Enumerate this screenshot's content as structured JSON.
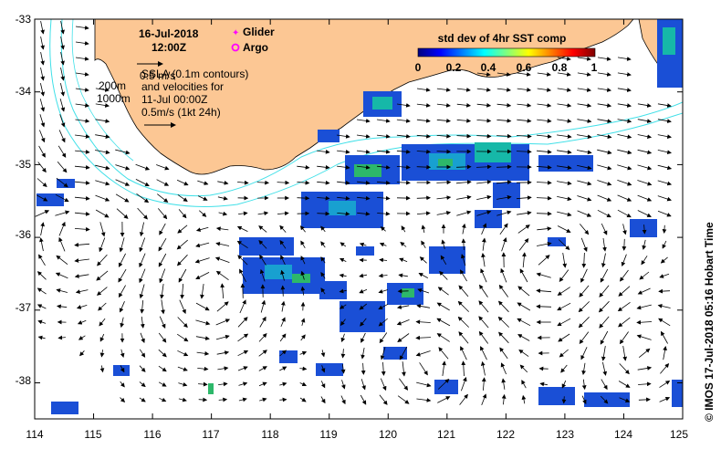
{
  "header": {
    "date": "16-Jul-2018",
    "time": "12:00Z",
    "legend_glider": "Glider",
    "legend_argo": "Argo",
    "sla_line1": "SSLA (0.1m contours)",
    "sla_line2": "and velocities for",
    "sla_line3": "11-Jul 00:00Z",
    "scale_drifter": "0.5m/s (1kt 24h)",
    "scale_top": "0.5 m/s",
    "depth_200": "200m",
    "depth_1000": "1000m"
  },
  "colorbar": {
    "title": "std dev of 4hr SST comp",
    "ticks": [
      "0",
      "0.2",
      "0.4",
      "0.6",
      "0.8",
      "1"
    ],
    "colors": [
      "#00007f",
      "#0000ff",
      "#007fff",
      "#00ffff",
      "#7fff7f",
      "#ffff00",
      "#ff7f00",
      "#ff0000",
      "#7f0000"
    ]
  },
  "axes": {
    "x_ticks": [
      "114",
      "115",
      "116",
      "117",
      "118",
      "119",
      "120",
      "121",
      "122",
      "123",
      "124",
      "125"
    ],
    "y_ticks": [
      "-33",
      "-34",
      "-35",
      "-36",
      "-37",
      "-38"
    ]
  },
  "credit": "© IMOS 17-Jul-2018 05:16 Hobart Time",
  "colors": {
    "land": "#fcc794",
    "contour": "#40e0e8",
    "glider": "#ff00ff",
    "argo": "#ff00ff"
  }
}
